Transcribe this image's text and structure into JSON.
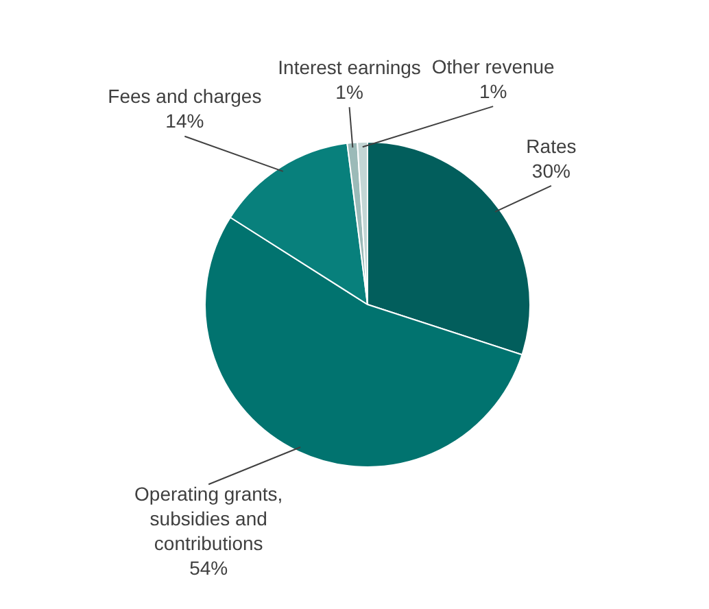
{
  "chart_data": {
    "type": "pie",
    "categories": [
      "Rates",
      "Operating grants, subsidies and contributions",
      "Fees and charges",
      "Interest earnings",
      "Other revenue"
    ],
    "values": [
      30,
      54,
      14,
      1,
      1
    ],
    "value_labels": [
      "30%",
      "54%",
      "14%",
      "1%",
      "1%"
    ],
    "colors": [
      "#025e5c",
      "#01736f",
      "#08807c",
      "#9bbab8",
      "#c3d6d5"
    ],
    "legend": false
  }
}
